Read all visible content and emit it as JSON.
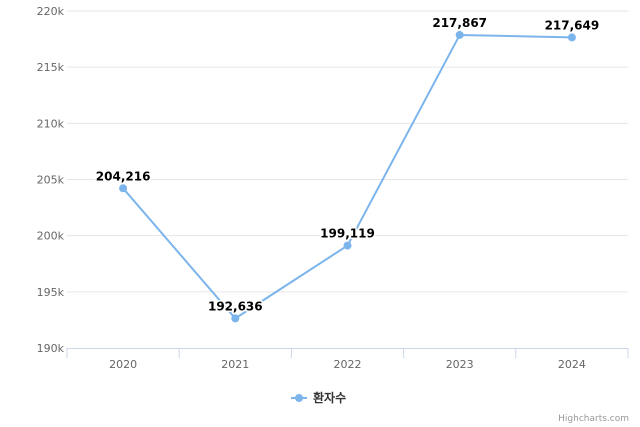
{
  "chart_data": {
    "type": "line",
    "categories": [
      "2020",
      "2021",
      "2022",
      "2023",
      "2024"
    ],
    "series": [
      {
        "name": "환자수",
        "values": [
          204216,
          192636,
          199119,
          217867,
          217649
        ],
        "color": "#7cb5ec"
      }
    ],
    "data_labels": [
      "204,216",
      "192,636",
      "199,119",
      "217,867",
      "217,649"
    ],
    "y_ticks": [
      190000,
      195000,
      200000,
      205000,
      210000,
      215000,
      220000
    ],
    "y_tick_labels": [
      "190k",
      "195k",
      "200k",
      "205k",
      "210k",
      "215k",
      "220k"
    ],
    "ylim": [
      190000,
      220000
    ],
    "grid": true,
    "legend_position": "bottom-center",
    "credits": "Highcharts.com"
  }
}
